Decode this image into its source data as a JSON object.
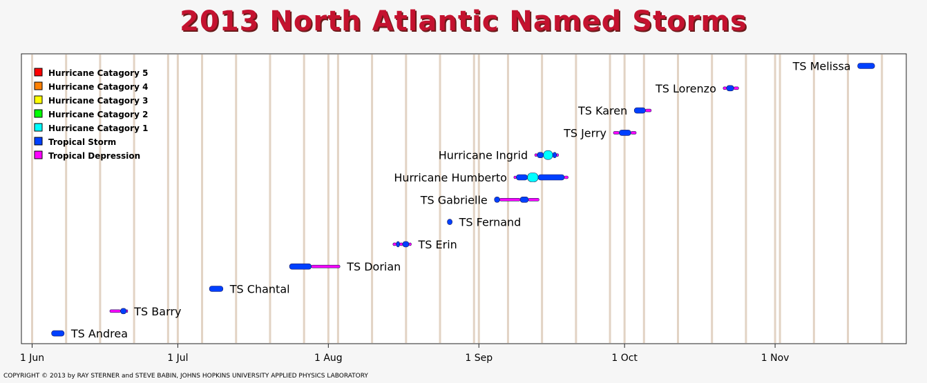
{
  "title": "2013 North Atlantic Named Storms",
  "copyright": "COPYRIGHT © 2013 by RAY STERNER and STEVE BABIN, JOHNS HOPKINS UNIVERSITY APPLIED PHYSICS LABORATORY",
  "colors": {
    "hurricane_cat5": "#ff0000",
    "hurricane_cat4": "#ff8000",
    "hurricane_cat3": "#ffff00",
    "hurricane_cat2": "#00ff00",
    "hurricane_cat1": "#00ffff",
    "tropical_storm": "#0040ff",
    "tropical_depression": "#ff00ff",
    "week_line": "#e2d3c4",
    "title": "#c4122f"
  },
  "chart_data": {
    "type": "timeline",
    "title": "2013 North Atlantic Named Storms",
    "x_axis": {
      "type": "date",
      "range": [
        "2013-05-30",
        "2013-11-27"
      ],
      "ticks": [
        {
          "date": "2013-06-01",
          "label": "1 Jun"
        },
        {
          "date": "2013-07-01",
          "label": "1 Jul"
        },
        {
          "date": "2013-08-01",
          "label": "1 Aug"
        },
        {
          "date": "2013-09-01",
          "label": "1 Sep"
        },
        {
          "date": "2013-10-01",
          "label": "1 Oct"
        },
        {
          "date": "2013-11-01",
          "label": "1 Nov"
        }
      ],
      "gridlines": "weekly"
    },
    "legend": {
      "placement": "top-left",
      "entries": [
        {
          "label": "Hurricane Catagory 5",
          "color": "#ff0000"
        },
        {
          "label": "Hurricane Catagory 4",
          "color": "#ff8000"
        },
        {
          "label": "Hurricane Catagory 3",
          "color": "#ffff00"
        },
        {
          "label": "Hurricane Catagory 2",
          "color": "#00ff00"
        },
        {
          "label": "Hurricane Catagory 1",
          "color": "#00ffff"
        },
        {
          "label": "Tropical Storm",
          "color": "#0040ff"
        },
        {
          "label": "Tropical Depression",
          "color": "#ff00ff"
        }
      ]
    },
    "storms": [
      {
        "name": "TS Andrea",
        "label_side": "right",
        "segments": [
          {
            "start": "2013-06-05",
            "end": "2013-06-07.6",
            "category": "TS"
          }
        ]
      },
      {
        "name": "TS Barry",
        "label_side": "right",
        "segments": [
          {
            "start": "2013-06-17",
            "end": "2013-06-19.2",
            "category": "TD"
          },
          {
            "start": "2013-06-19.2",
            "end": "2013-06-20.4",
            "category": "TS"
          },
          {
            "start": "2013-06-20.4",
            "end": "2013-06-20.6",
            "category": "TD"
          }
        ]
      },
      {
        "name": "TS Chantal",
        "label_side": "right",
        "segments": [
          {
            "start": "2013-07-07.5",
            "end": "2013-07-10.3",
            "category": "TS"
          }
        ]
      },
      {
        "name": "TS Dorian",
        "label_side": "right",
        "segments": [
          {
            "start": "2013-07-24",
            "end": "2013-07-28.5",
            "category": "TS"
          },
          {
            "start": "2013-07-28.5",
            "end": "2013-08-03.4",
            "category": "TD"
          }
        ]
      },
      {
        "name": "TS Erin",
        "label_side": "right",
        "segments": [
          {
            "start": "2013-08-14.3",
            "end": "2013-08-15",
            "category": "TD"
          },
          {
            "start": "2013-08-15",
            "end": "2013-08-15.7",
            "category": "TS"
          },
          {
            "start": "2013-08-15.7",
            "end": "2013-08-16.3",
            "category": "TD"
          },
          {
            "start": "2013-08-16.3",
            "end": "2013-08-17.6",
            "category": "TS"
          },
          {
            "start": "2013-08-17.6",
            "end": "2013-08-18.1",
            "category": "TD"
          }
        ]
      },
      {
        "name": "TS Fernand",
        "label_side": "right",
        "segments": [
          {
            "start": "2013-08-25.5",
            "end": "2013-08-26.5",
            "category": "TS"
          }
        ]
      },
      {
        "name": "TS Gabrielle",
        "label_side": "left",
        "segments": [
          {
            "start": "2013-09-04.2",
            "end": "2013-09-05.3",
            "category": "TS"
          },
          {
            "start": "2013-09-05.3",
            "end": "2013-09-09.5",
            "category": "TD"
          },
          {
            "start": "2013-09-09.5",
            "end": "2013-09-11.2",
            "category": "TS"
          },
          {
            "start": "2013-09-11.2",
            "end": "2013-09-13.4",
            "category": "TD"
          }
        ]
      },
      {
        "name": "Hurricane Humberto",
        "label_side": "left",
        "segments": [
          {
            "start": "2013-09-08.2",
            "end": "2013-09-08.7",
            "category": "TD"
          },
          {
            "start": "2013-09-08.7",
            "end": "2013-09-11",
            "category": "TS"
          },
          {
            "start": "2013-09-11",
            "end": "2013-09-13.2",
            "category": "H1"
          },
          {
            "start": "2013-09-13.2",
            "end": "2013-09-18.6",
            "category": "TS"
          },
          {
            "start": "2013-09-18.6",
            "end": "2013-09-19.4",
            "category": "TD"
          }
        ]
      },
      {
        "name": "Hurricane Ingrid",
        "label_side": "left",
        "segments": [
          {
            "start": "2013-09-12.5",
            "end": "2013-09-13",
            "category": "TD"
          },
          {
            "start": "2013-09-13",
            "end": "2013-09-14.3",
            "category": "TS"
          },
          {
            "start": "2013-09-14.3",
            "end": "2013-09-16.2",
            "category": "H1"
          },
          {
            "start": "2013-09-16.2",
            "end": "2013-09-17",
            "category": "TS"
          },
          {
            "start": "2013-09-17",
            "end": "2013-09-17.4",
            "category": "TD"
          }
        ]
      },
      {
        "name": "TS Jerry",
        "label_side": "left",
        "segments": [
          {
            "start": "2013-09-28.7",
            "end": "2013-09-29.9",
            "category": "TD"
          },
          {
            "start": "2013-09-29.9",
            "end": "2013-10-02.3",
            "category": "TS"
          },
          {
            "start": "2013-10-02.3",
            "end": "2013-10-03.4",
            "category": "TD"
          }
        ]
      },
      {
        "name": "TS Karen",
        "label_side": "left",
        "segments": [
          {
            "start": "2013-10-03",
            "end": "2013-10-05.3",
            "category": "TS"
          },
          {
            "start": "2013-10-05.3",
            "end": "2013-10-06.5",
            "category": "TD"
          }
        ]
      },
      {
        "name": "TS Lorenzo",
        "label_side": "left",
        "segments": [
          {
            "start": "2013-10-21.3",
            "end": "2013-10-22",
            "category": "TD"
          },
          {
            "start": "2013-10-22",
            "end": "2013-10-23.5",
            "category": "TS"
          },
          {
            "start": "2013-10-23.5",
            "end": "2013-10-24.5",
            "category": "TD"
          }
        ]
      },
      {
        "name": "TS Melissa",
        "label_side": "left",
        "segments": [
          {
            "start": "2013-11-18",
            "end": "2013-11-21.5",
            "category": "TS"
          }
        ]
      }
    ]
  }
}
